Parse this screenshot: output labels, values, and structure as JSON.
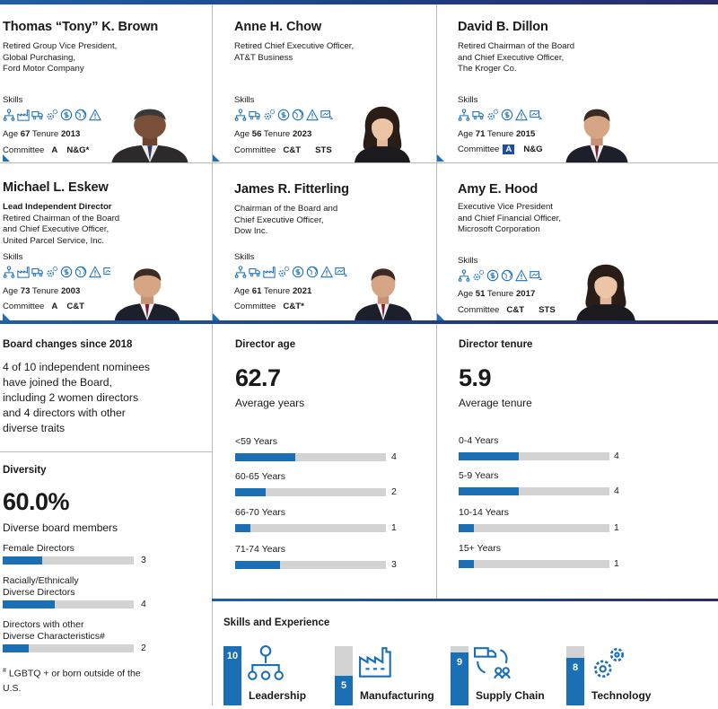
{
  "colors": {
    "accent": "#1b6fb5",
    "navy": "#1e4ea1",
    "track": "#d3d3d3"
  },
  "directors": [
    {
      "name": "Thomas “Tony” K. Brown",
      "lead": "",
      "title_lines": [
        "Retired Group Vice President,",
        "Global Purchasing,",
        "Ford Motor Company"
      ],
      "skills_label": "Skills",
      "age_label": "Age",
      "age": "67",
      "tenure_label": "Tenure",
      "tenure": "2013",
      "committee_label": "Committee",
      "committees": [
        "A",
        "N&G*"
      ]
    },
    {
      "name": "Anne H. Chow",
      "lead": "",
      "title_lines": [
        "Retired Chief Executive Officer,",
        "AT&T Business"
      ],
      "skills_label": "Skills",
      "age_label": "Age",
      "age": "56",
      "tenure_label": "Tenure",
      "tenure": "2023",
      "committee_label": "Committee",
      "committees": [
        "C&T",
        "STS"
      ]
    },
    {
      "name": "David B. Dillon",
      "lead": "",
      "title_lines": [
        "Retired Chairman of the Board",
        "and Chief Executive Officer,",
        "The Kroger Co."
      ],
      "skills_label": "Skills",
      "age_label": "Age",
      "age": "71",
      "tenure_label": "Tenure",
      "tenure": "2015",
      "committee_label": "Committee",
      "committees": [
        "A",
        "N&G"
      ]
    },
    {
      "name": "Michael L. Eskew",
      "lead": "Lead Independent Director",
      "title_lines": [
        "Retired Chairman of the Board",
        "and Chief Executive Officer,",
        "United Parcel Service, Inc."
      ],
      "skills_label": "Skills",
      "age_label": "Age",
      "age": "73",
      "tenure_label": "Tenure",
      "tenure": "2003",
      "committee_label": "Committee",
      "committees": [
        "A",
        "C&T"
      ]
    },
    {
      "name": "James R. Fitterling",
      "lead": "",
      "title_lines": [
        "Chairman of the Board and",
        "Chief Executive Officer,",
        "Dow Inc."
      ],
      "skills_label": "Skills",
      "age_label": "Age",
      "age": "61",
      "tenure_label": "Tenure",
      "tenure": "2021",
      "committee_label": "Committee",
      "committees": [
        "C&T*"
      ]
    },
    {
      "name": "Amy E. Hood",
      "lead": "",
      "title_lines": [
        "Executive Vice President",
        "and Chief Financial Officer,",
        "Microsoft Corporation"
      ],
      "skills_label": "Skills",
      "age_label": "Age",
      "age": "51",
      "tenure_label": "Tenure",
      "tenure": "2017",
      "committee_label": "Committee",
      "committees": [
        "C&T",
        "STS"
      ]
    }
  ],
  "board_changes": {
    "title": "Board changes since 2018",
    "text": "4 of 10 independent nominees have joined the Board, including 2 women directors and 4 directors with other diverse traits"
  },
  "diversity": {
    "title": "Diversity",
    "big": "60.0%",
    "sub": "Diverse board members",
    "rows": [
      {
        "label_lines": [
          "Female Directors"
        ],
        "value": 3
      },
      {
        "label_lines": [
          "Racially/Ethnically",
          "Diverse Directors"
        ],
        "value": 4
      },
      {
        "label_lines": [
          "Directors with other",
          "Diverse Characteristics#"
        ],
        "value": 2
      }
    ],
    "footnote_mark": "#",
    "footnote": "LGBTQ + or born outside of the U.S."
  },
  "director_age": {
    "title": "Director age",
    "big": "62.7",
    "sub": "Average years",
    "rows": [
      {
        "label": "<59 Years",
        "value": 4
      },
      {
        "label": "60-65 Years",
        "value": 2
      },
      {
        "label": "66-70 Years",
        "value": 1
      },
      {
        "label": "71-74 Years",
        "value": 3
      }
    ]
  },
  "director_tenure": {
    "title": "Director tenure",
    "big": "5.9",
    "sub": "Average tenure",
    "rows": [
      {
        "label": "0-4 Years",
        "value": 4
      },
      {
        "label": "5-9 Years",
        "value": 4
      },
      {
        "label": "10-14 Years",
        "value": 1
      },
      {
        "label": "15+ Years",
        "value": 1
      }
    ]
  },
  "bar_max": 10,
  "skills": {
    "title": "Skills and Experience",
    "max": 10,
    "items": [
      {
        "label": "Leadership",
        "count": 10,
        "icon": "leadership-icon"
      },
      {
        "label": "Manufacturing",
        "count": 5,
        "icon": "factory-icon"
      },
      {
        "label": "Supply Chain",
        "count": 9,
        "icon": "supply-chain-icon"
      },
      {
        "label": "Technology",
        "count": 8,
        "icon": "gears-icon"
      }
    ]
  }
}
